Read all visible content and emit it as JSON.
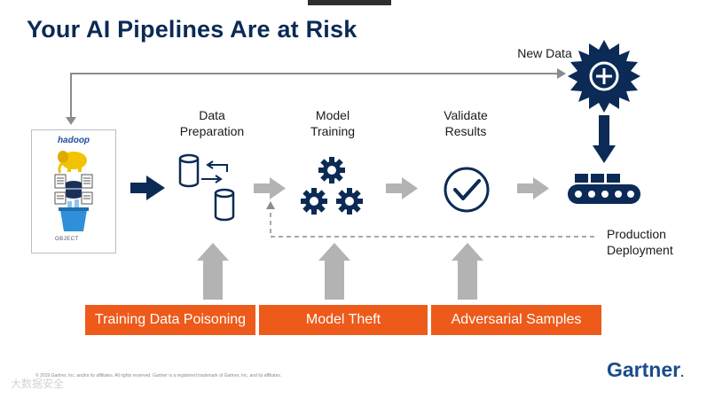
{
  "title": "Your AI Pipelines Are at Risk",
  "stages": {
    "data_preparation": "Data Preparation",
    "model_training": "Model Training",
    "validate_results": "Validate Results",
    "new_data": "New Data",
    "production_deployment": "Production Deployment"
  },
  "risks": [
    "Training Data Poisoning",
    "Model Theft",
    "Adversarial Samples"
  ],
  "data_source": {
    "logo_text": "hadoop",
    "bucket_label": "OBJECT"
  },
  "footer": "© 2019 Gartner, Inc. and/or its affiliates. All rights reserved. Gartner is a registered trademark of Gartner, Inc. and its affiliates.",
  "brand": "Gartner",
  "watermark": "大数据安全",
  "colors": {
    "navy": "#0b2a55",
    "orange": "#ed5a1a",
    "arrow_gray": "#b3b3b3"
  },
  "icons": [
    "database-icon",
    "gears-icon",
    "checkmark-circle-icon",
    "new-data-gear-icon",
    "conveyor-belt-icon",
    "elephant-icon",
    "document-icon",
    "bucket-icon"
  ]
}
